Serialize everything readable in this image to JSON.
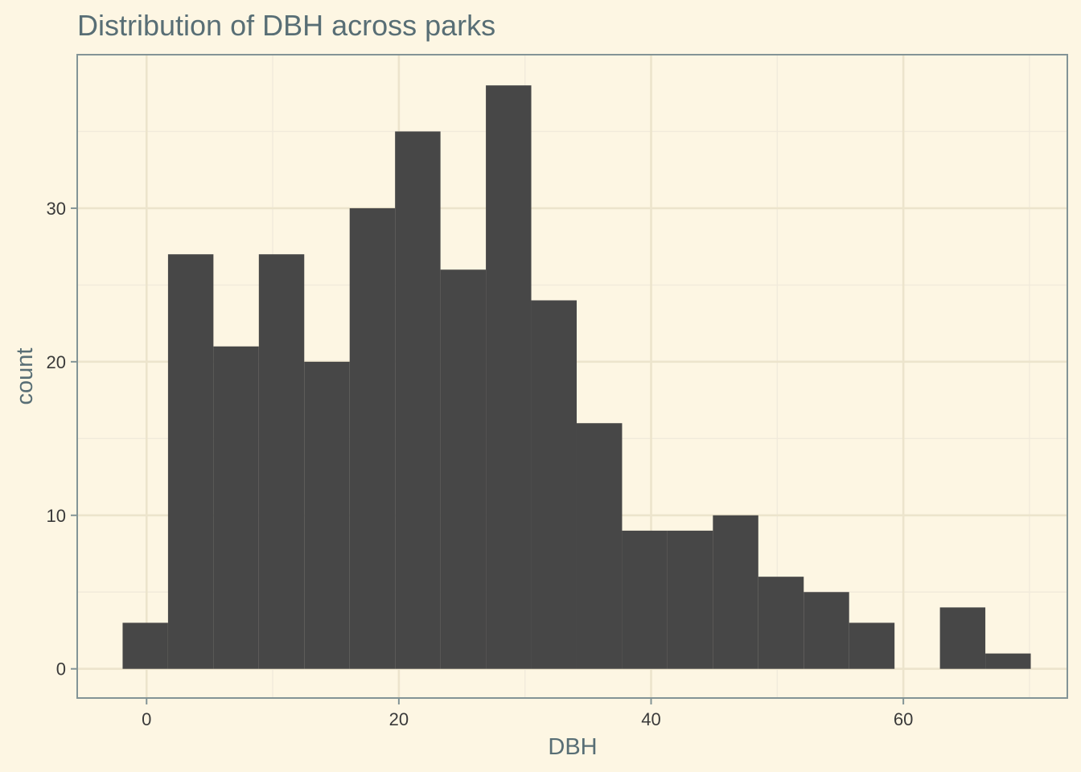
{
  "chart_data": {
    "type": "bar",
    "subtype": "histogram",
    "title": "Distribution of DBH across parks",
    "xlabel": "DBH",
    "ylabel": "count",
    "xlim": [
      -5.5,
      73
    ],
    "ylim": [
      -1.9,
      40
    ],
    "x_ticks": [
      0,
      20,
      40,
      60
    ],
    "y_ticks": [
      0,
      10,
      20,
      30
    ],
    "bins": [
      {
        "x0": -1.9,
        "x1": 1.7,
        "count": 3
      },
      {
        "x0": 1.7,
        "x1": 5.3,
        "count": 27
      },
      {
        "x0": 5.3,
        "x1": 8.9,
        "count": 21
      },
      {
        "x0": 8.9,
        "x1": 12.5,
        "count": 27
      },
      {
        "x0": 12.5,
        "x1": 16.1,
        "count": 20
      },
      {
        "x0": 16.1,
        "x1": 19.7,
        "count": 30
      },
      {
        "x0": 19.7,
        "x1": 23.3,
        "count": 35
      },
      {
        "x0": 23.3,
        "x1": 26.9,
        "count": 26
      },
      {
        "x0": 26.9,
        "x1": 30.5,
        "count": 38
      },
      {
        "x0": 30.5,
        "x1": 34.1,
        "count": 24
      },
      {
        "x0": 34.1,
        "x1": 37.7,
        "count": 16
      },
      {
        "x0": 37.7,
        "x1": 41.3,
        "count": 9
      },
      {
        "x0": 41.3,
        "x1": 44.9,
        "count": 9
      },
      {
        "x0": 44.9,
        "x1": 48.5,
        "count": 10
      },
      {
        "x0": 48.5,
        "x1": 52.1,
        "count": 6
      },
      {
        "x0": 52.1,
        "x1": 55.7,
        "count": 5
      },
      {
        "x0": 55.7,
        "x1": 59.3,
        "count": 3
      },
      {
        "x0": 59.3,
        "x1": 62.9,
        "count": 0
      },
      {
        "x0": 62.9,
        "x1": 66.5,
        "count": 4
      },
      {
        "x0": 66.5,
        "x1": 70.1,
        "count": 1
      }
    ],
    "bar_color": "#474747",
    "background_color": "#fdf6e3",
    "grid": true,
    "legend": "none"
  }
}
